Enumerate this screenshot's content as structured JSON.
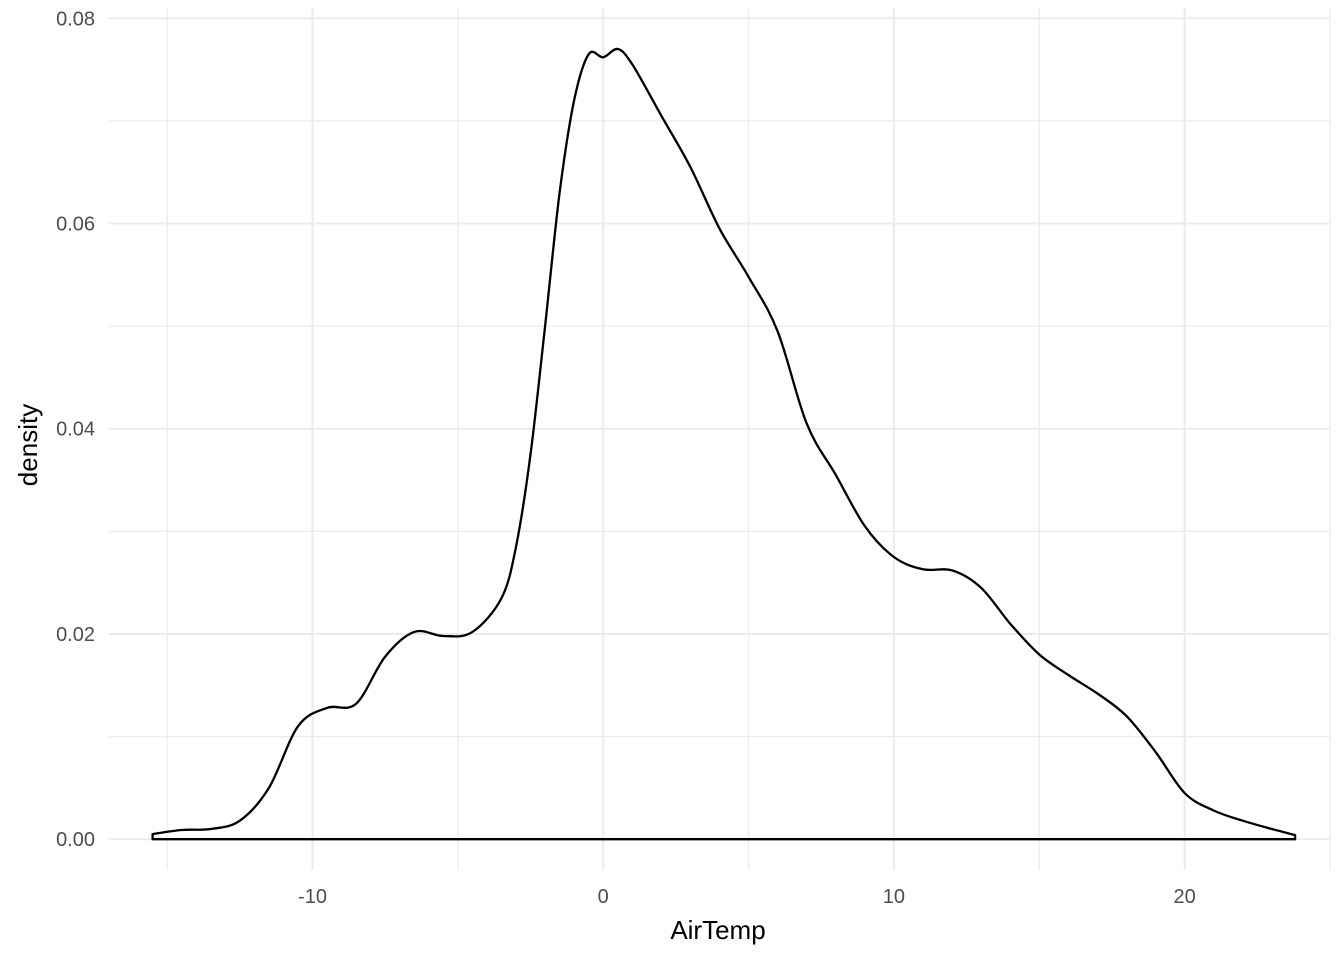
{
  "chart_data": {
    "type": "area",
    "geom": "density",
    "xlabel": "AirTemp",
    "ylabel": "density",
    "xlim": [
      -17,
      25
    ],
    "ylim": [
      -0.003,
      0.081
    ],
    "x_ticks": [
      -10,
      0,
      10,
      20
    ],
    "x_tick_labels": [
      "-10",
      "0",
      "10",
      "20"
    ],
    "y_ticks": [
      0,
      0.02,
      0.04,
      0.06,
      0.08
    ],
    "y_tick_labels": [
      "0.00",
      "0.02",
      "0.04",
      "0.06",
      "0.08"
    ],
    "grid": true,
    "colors": {
      "line": "#000000",
      "fill": "none",
      "grid": "#ebebeb",
      "tick_text": "#4d4d4d"
    },
    "series": [
      {
        "x": [
          -15.5,
          -14.5,
          -13.5,
          -12.5,
          -11.5,
          -10.5,
          -9.5,
          -8.5,
          -7.5,
          -6.5,
          -5.5,
          -4.5,
          -3.5,
          -3.0,
          -2.5,
          -2.0,
          -1.5,
          -1.0,
          -0.5,
          0.0,
          0.5,
          1.0,
          2.0,
          3.0,
          4.0,
          5.0,
          6.0,
          7.0,
          8.0,
          9.0,
          10.0,
          11.0,
          12.0,
          13.0,
          14.0,
          15.0,
          16.0,
          17.0,
          18.0,
          19.0,
          20.0,
          21.0,
          22.0,
          23.0,
          23.8
        ],
        "y": [
          0.0005,
          0.0009,
          0.001,
          0.0018,
          0.005,
          0.011,
          0.0128,
          0.0132,
          0.0178,
          0.0202,
          0.0198,
          0.0202,
          0.0235,
          0.0285,
          0.0375,
          0.05,
          0.063,
          0.072,
          0.0765,
          0.0762,
          0.077,
          0.0755,
          0.0705,
          0.0655,
          0.0595,
          0.0548,
          0.0495,
          0.0405,
          0.0355,
          0.0305,
          0.0275,
          0.0263,
          0.0262,
          0.0245,
          0.021,
          0.018,
          0.016,
          0.0142,
          0.012,
          0.0085,
          0.0045,
          0.0028,
          0.0018,
          0.001,
          0.0004
        ]
      }
    ]
  }
}
